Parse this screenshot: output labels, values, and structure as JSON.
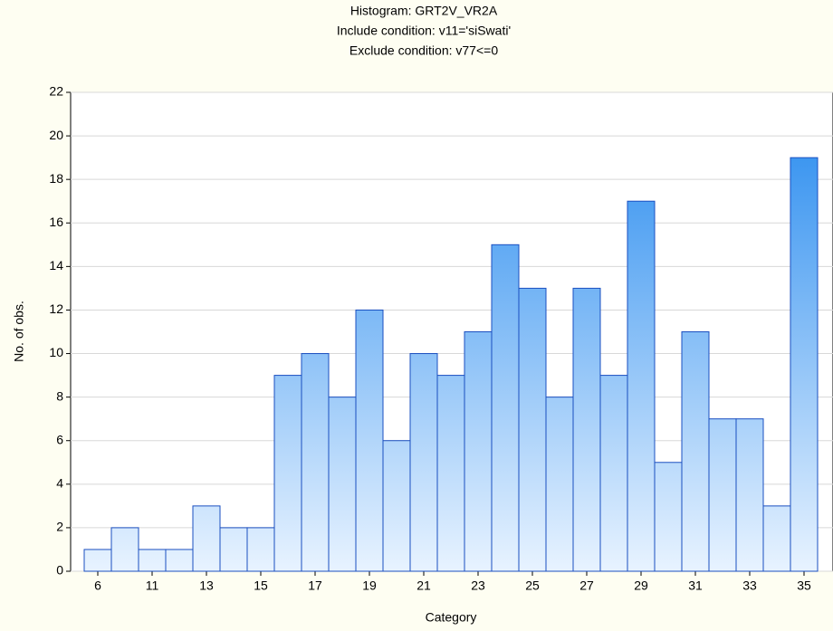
{
  "chart_data": {
    "type": "bar",
    "title": [
      "Histogram: GRT2V_VR2A",
      "Include condition: v11='siSwati'",
      "Exclude condition: v77<=0"
    ],
    "x_label": "Category",
    "y_label": "No. of obs.",
    "categories": [
      "6",
      null,
      "11",
      null,
      "13",
      null,
      "15",
      null,
      "17",
      null,
      "19",
      null,
      "21",
      null,
      "23",
      null,
      "25",
      null,
      "27",
      null,
      "29",
      null,
      "31",
      null,
      "33",
      null,
      "35"
    ],
    "values": [
      1,
      2,
      1,
      1,
      3,
      2,
      2,
      9,
      10,
      8,
      12,
      6,
      10,
      9,
      11,
      15,
      13,
      8,
      13,
      9,
      17,
      5,
      11,
      7,
      7,
      3,
      19
    ],
    "color": [
      "#e8f3ff",
      "#2288ee"
    ],
    "ylim": [
      0,
      22
    ],
    "yticks": [
      0,
      2,
      4,
      6,
      8,
      10,
      12,
      14,
      16,
      18,
      20,
      22
    ],
    "grid": true
  }
}
